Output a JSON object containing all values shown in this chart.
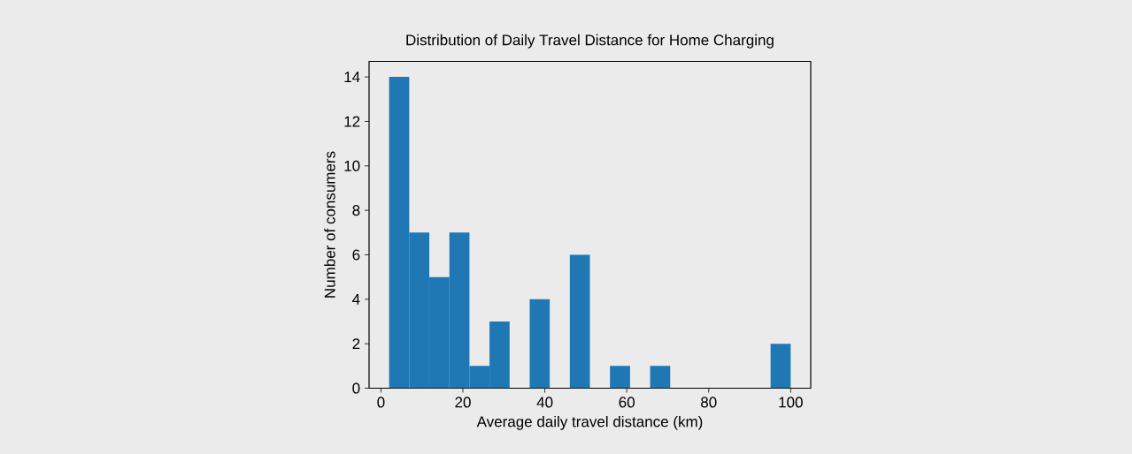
{
  "chart_data": {
    "type": "histogram",
    "title": "Distribution of Daily Travel Distance for Home Charging",
    "xlabel": "Average daily travel distance (km)",
    "ylabel": "Number of consumers",
    "bins": [
      2,
      6.9,
      11.8,
      16.7,
      21.6,
      26.5,
      31.4,
      36.3,
      41.2,
      46.1,
      51,
      55.9,
      60.8,
      65.7,
      70.6,
      75.5,
      80.4,
      85.3,
      90.2,
      95.1,
      100
    ],
    "values": [
      14,
      7,
      5,
      7,
      1,
      3,
      0,
      4,
      0,
      6,
      0,
      1,
      0,
      1,
      0,
      0,
      0,
      0,
      0,
      2
    ],
    "color": "#1f77b4",
    "xlim": [
      -2.9,
      104.9
    ],
    "ylim": [
      0,
      14.7
    ],
    "xticks": [
      0,
      20,
      40,
      60,
      80,
      100
    ],
    "yticks": [
      0,
      2,
      4,
      6,
      8,
      10,
      12,
      14
    ],
    "grid": false
  }
}
